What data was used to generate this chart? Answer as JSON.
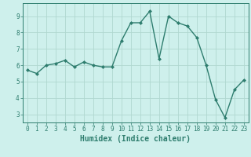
{
  "x": [
    0,
    1,
    2,
    3,
    4,
    5,
    6,
    7,
    8,
    9,
    10,
    11,
    12,
    13,
    14,
    15,
    16,
    17,
    18,
    19,
    20,
    21,
    22,
    23
  ],
  "y": [
    5.7,
    5.5,
    6.0,
    6.1,
    6.3,
    5.9,
    6.2,
    6.0,
    5.9,
    5.9,
    7.5,
    8.6,
    8.6,
    9.3,
    6.4,
    9.0,
    8.6,
    8.4,
    7.7,
    6.0,
    3.9,
    2.8,
    4.5,
    5.1
  ],
  "line_color": "#2e7d6e",
  "marker": "D",
  "marker_size": 2.0,
  "line_width": 1.0,
  "xlabel": "Humidex (Indice chaleur)",
  "xlabel_fontsize": 7,
  "bg_color": "#cef0ec",
  "grid_color": "#b0d8d0",
  "axis_color": "#2e7d6e",
  "tick_color": "#2e7d6e",
  "xlim": [
    -0.5,
    23.5
  ],
  "ylim": [
    2.5,
    9.8
  ],
  "yticks": [
    3,
    4,
    5,
    6,
    7,
    8,
    9
  ],
  "xticks": [
    0,
    1,
    2,
    3,
    4,
    5,
    6,
    7,
    8,
    9,
    10,
    11,
    12,
    13,
    14,
    15,
    16,
    17,
    18,
    19,
    20,
    21,
    22,
    23
  ],
  "tick_fontsize": 5.5,
  "ylabel_fontsize": 6
}
